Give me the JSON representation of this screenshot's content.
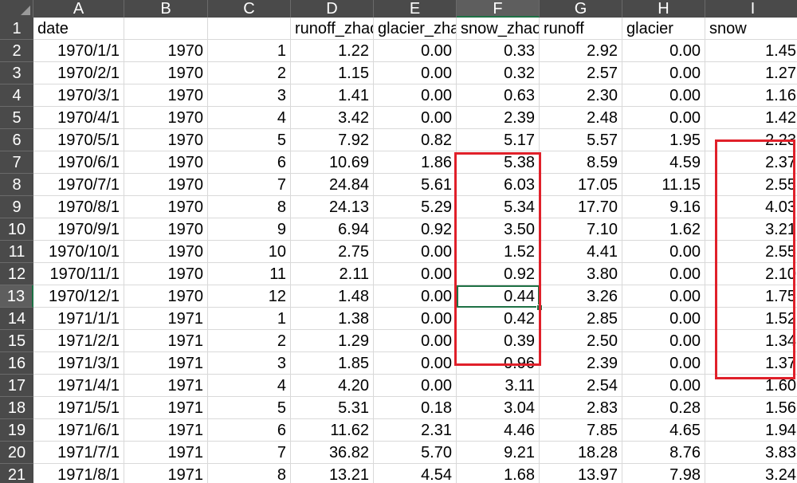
{
  "columns": [
    "A",
    "B",
    "C",
    "D",
    "E",
    "F",
    "G",
    "H",
    "I"
  ],
  "selected_column": "F",
  "selected_row": "13",
  "header_row": {
    "row": "1",
    "cells": [
      "date",
      "",
      "",
      "runoff_zhao",
      "glacier_zhao",
      "snow_zhao",
      "runoff",
      "glacier",
      "snow"
    ]
  },
  "rows": [
    {
      "row": "2",
      "cells": [
        "1970/1/1",
        "1970",
        "1",
        "1.22",
        "0.00",
        "0.33",
        "2.92",
        "0.00",
        "1.45"
      ]
    },
    {
      "row": "3",
      "cells": [
        "1970/2/1",
        "1970",
        "2",
        "1.15",
        "0.00",
        "0.32",
        "2.57",
        "0.00",
        "1.27"
      ]
    },
    {
      "row": "4",
      "cells": [
        "1970/3/1",
        "1970",
        "3",
        "1.41",
        "0.00",
        "0.63",
        "2.30",
        "0.00",
        "1.16"
      ]
    },
    {
      "row": "5",
      "cells": [
        "1970/4/1",
        "1970",
        "4",
        "3.42",
        "0.00",
        "2.39",
        "2.48",
        "0.00",
        "1.42"
      ]
    },
    {
      "row": "6",
      "cells": [
        "1970/5/1",
        "1970",
        "5",
        "7.92",
        "0.82",
        "5.17",
        "5.57",
        "1.95",
        "2.23"
      ]
    },
    {
      "row": "7",
      "cells": [
        "1970/6/1",
        "1970",
        "6",
        "10.69",
        "1.86",
        "5.38",
        "8.59",
        "4.59",
        "2.37"
      ]
    },
    {
      "row": "8",
      "cells": [
        "1970/7/1",
        "1970",
        "7",
        "24.84",
        "5.61",
        "6.03",
        "17.05",
        "11.15",
        "2.55"
      ]
    },
    {
      "row": "9",
      "cells": [
        "1970/8/1",
        "1970",
        "8",
        "24.13",
        "5.29",
        "5.34",
        "17.70",
        "9.16",
        "4.03"
      ]
    },
    {
      "row": "10",
      "cells": [
        "1970/9/1",
        "1970",
        "9",
        "6.94",
        "0.92",
        "3.50",
        "7.10",
        "1.62",
        "3.21"
      ]
    },
    {
      "row": "11",
      "cells": [
        "1970/10/1",
        "1970",
        "10",
        "2.75",
        "0.00",
        "1.52",
        "4.41",
        "0.00",
        "2.55"
      ]
    },
    {
      "row": "12",
      "cells": [
        "1970/11/1",
        "1970",
        "11",
        "2.11",
        "0.00",
        "0.92",
        "3.80",
        "0.00",
        "2.10"
      ]
    },
    {
      "row": "13",
      "cells": [
        "1970/12/1",
        "1970",
        "12",
        "1.48",
        "0.00",
        "0.44",
        "3.26",
        "0.00",
        "1.75"
      ]
    },
    {
      "row": "14",
      "cells": [
        "1971/1/1",
        "1971",
        "1",
        "1.38",
        "0.00",
        "0.42",
        "2.85",
        "0.00",
        "1.52"
      ]
    },
    {
      "row": "15",
      "cells": [
        "1971/2/1",
        "1971",
        "2",
        "1.29",
        "0.00",
        "0.39",
        "2.50",
        "0.00",
        "1.34"
      ]
    },
    {
      "row": "16",
      "cells": [
        "1971/3/1",
        "1971",
        "3",
        "1.85",
        "0.00",
        "0.96",
        "2.39",
        "0.00",
        "1.37"
      ]
    },
    {
      "row": "17",
      "cells": [
        "1971/4/1",
        "1971",
        "4",
        "4.20",
        "0.00",
        "3.11",
        "2.54",
        "0.00",
        "1.60"
      ]
    },
    {
      "row": "18",
      "cells": [
        "1971/5/1",
        "1971",
        "5",
        "5.31",
        "0.18",
        "3.04",
        "2.83",
        "0.28",
        "1.56"
      ]
    },
    {
      "row": "19",
      "cells": [
        "1971/6/1",
        "1971",
        "6",
        "11.62",
        "2.31",
        "4.46",
        "7.85",
        "4.65",
        "1.94"
      ]
    },
    {
      "row": "20",
      "cells": [
        "1971/7/1",
        "1971",
        "7",
        "36.82",
        "5.70",
        "9.21",
        "18.28",
        "8.76",
        "3.83"
      ]
    },
    {
      "row": "21",
      "cells": [
        "1971/8/1",
        "1971",
        "8",
        "13.21",
        "4.54",
        "1.68",
        "13.97",
        "7.98",
        "3.24"
      ]
    }
  ],
  "colors": {
    "header_bg": "#4a4a4a",
    "selection": "#1e7145",
    "annotation": "#e0202a"
  }
}
